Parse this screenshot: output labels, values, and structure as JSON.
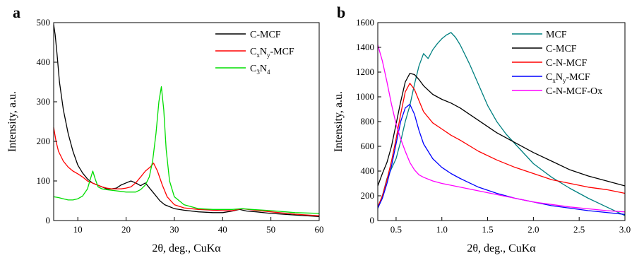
{
  "chart_data": [
    {
      "type": "line",
      "panel_label": "a",
      "xlabel": "2θ, deg., CuKα",
      "ylabel": "Intensity, a.u.",
      "xlim": [
        5,
        60
      ],
      "ylim": [
        0,
        500
      ],
      "xticks": [
        10,
        20,
        30,
        40,
        50,
        60
      ],
      "yticks": [
        0,
        100,
        200,
        300,
        400,
        500
      ],
      "grid": false,
      "legend_placement": "top-right",
      "series": [
        {
          "name": "C-MCF",
          "legend": {
            "base": "C-MCF",
            "parts": []
          },
          "color": "#000000",
          "x": [
            5,
            5.3,
            5.7,
            6.2,
            7,
            8,
            9,
            10,
            11,
            12,
            13,
            14,
            15,
            16,
            17,
            18,
            19,
            20,
            21,
            22,
            23,
            24,
            25,
            26,
            27,
            28,
            29,
            30,
            32,
            35,
            38,
            40,
            42,
            43.5,
            45,
            47,
            50,
            55,
            60
          ],
          "y": [
            495,
            470,
            420,
            350,
            280,
            220,
            175,
            140,
            120,
            105,
            95,
            90,
            85,
            80,
            80,
            82,
            90,
            95,
            100,
            95,
            88,
            95,
            80,
            65,
            50,
            40,
            35,
            30,
            26,
            22,
            20,
            20,
            24,
            28,
            24,
            22,
            18,
            14,
            10
          ]
        },
        {
          "name": "CxNy-MCF",
          "legend": {
            "base": "C",
            "parts": [
              {
                "sub": "x"
              },
              {
                "text": "N"
              },
              {
                "sub": "y"
              },
              {
                "text": "-MCF"
              }
            ]
          },
          "color": "#ff0000",
          "x": [
            5,
            5.5,
            6,
            7,
            8,
            9,
            10,
            11,
            12,
            13,
            14,
            15,
            16,
            17,
            18,
            19,
            20,
            21,
            22,
            23,
            24,
            25,
            25.7,
            26.5,
            27.5,
            28.5,
            30,
            32,
            35,
            38,
            40,
            42,
            44,
            46,
            50,
            55,
            60
          ],
          "y": [
            235,
            200,
            175,
            150,
            135,
            125,
            118,
            110,
            100,
            95,
            90,
            85,
            82,
            80,
            80,
            80,
            82,
            85,
            95,
            110,
            125,
            135,
            145,
            125,
            90,
            60,
            40,
            32,
            28,
            26,
            25,
            25,
            30,
            27,
            22,
            16,
            12
          ]
        },
        {
          "name": "C3N4",
          "legend": {
            "base": "C",
            "parts": [
              {
                "sub": "3"
              },
              {
                "text": "N"
              },
              {
                "sub": "4"
              }
            ]
          },
          "color": "#00dd00",
          "x": [
            5,
            6,
            7,
            8,
            9,
            10,
            11,
            12,
            12.6,
            13.1,
            13.6,
            14.2,
            15,
            16,
            18,
            20,
            22,
            23,
            24,
            24.8,
            25.5,
            26.2,
            26.8,
            27.3,
            27.8,
            28.3,
            29,
            30,
            32,
            35,
            38,
            40,
            42,
            44,
            46,
            50,
            55,
            60
          ],
          "y": [
            60,
            58,
            55,
            52,
            52,
            55,
            62,
            80,
            105,
            125,
            105,
            85,
            80,
            78,
            75,
            72,
            72,
            78,
            90,
            110,
            150,
            220,
            300,
            338,
            280,
            180,
            100,
            60,
            40,
            30,
            28,
            28,
            28,
            30,
            28,
            25,
            20,
            18
          ]
        }
      ]
    },
    {
      "type": "line",
      "panel_label": "b",
      "xlabel": "2θ, deg., CuKα",
      "ylabel": "Intensity, a.u.",
      "xlim": [
        0.3,
        3.0
      ],
      "ylim": [
        0,
        1600
      ],
      "xticks": [
        0.5,
        1.0,
        1.5,
        2.0,
        2.5,
        3.0
      ],
      "xtick_labels": [
        "0.5",
        "1.0",
        "1.5",
        "2.0",
        "2.5",
        "3.0"
      ],
      "yticks": [
        0,
        200,
        400,
        600,
        800,
        1000,
        1200,
        1400,
        1600
      ],
      "grid": false,
      "legend_placement": "top-right",
      "series": [
        {
          "name": "MCF",
          "legend": {
            "base": "MCF",
            "parts": []
          },
          "color": "#008080",
          "x": [
            0.3,
            0.35,
            0.4,
            0.45,
            0.5,
            0.55,
            0.6,
            0.65,
            0.7,
            0.75,
            0.8,
            0.85,
            0.9,
            0.95,
            1.0,
            1.05,
            1.1,
            1.15,
            1.2,
            1.3,
            1.4,
            1.5,
            1.6,
            1.7,
            1.8,
            1.9,
            2.0,
            2.2,
            2.4,
            2.6,
            2.8,
            3.0
          ],
          "y": [
            100,
            200,
            340,
            420,
            500,
            640,
            800,
            930,
            1100,
            1250,
            1350,
            1310,
            1380,
            1430,
            1470,
            1500,
            1520,
            1480,
            1420,
            1270,
            1100,
            930,
            800,
            700,
            620,
            540,
            460,
            350,
            260,
            180,
            110,
            40
          ]
        },
        {
          "name": "C-MCF",
          "legend": {
            "base": "C-MCF",
            "parts": []
          },
          "color": "#000000",
          "x": [
            0.3,
            0.35,
            0.4,
            0.45,
            0.5,
            0.55,
            0.6,
            0.65,
            0.7,
            0.75,
            0.8,
            0.9,
            1.0,
            1.1,
            1.2,
            1.4,
            1.6,
            1.8,
            2.0,
            2.2,
            2.4,
            2.6,
            2.8,
            3.0
          ],
          "y": [
            280,
            380,
            470,
            600,
            780,
            960,
            1120,
            1190,
            1180,
            1140,
            1090,
            1020,
            980,
            950,
            910,
            810,
            710,
            630,
            550,
            480,
            410,
            360,
            320,
            280
          ]
        },
        {
          "name": "C-N-MCF",
          "legend": {
            "base": "C-N-MCF",
            "parts": []
          },
          "color": "#ff0000",
          "x": [
            0.3,
            0.35,
            0.4,
            0.45,
            0.5,
            0.55,
            0.6,
            0.65,
            0.7,
            0.75,
            0.8,
            0.9,
            1.0,
            1.1,
            1.2,
            1.4,
            1.6,
            1.8,
            2.0,
            2.2,
            2.4,
            2.6,
            2.8,
            3.0
          ],
          "y": [
            110,
            200,
            330,
            480,
            660,
            860,
            1040,
            1110,
            1060,
            970,
            880,
            790,
            740,
            690,
            650,
            560,
            490,
            430,
            380,
            330,
            300,
            270,
            250,
            220
          ]
        },
        {
          "name": "CxNy-MCF",
          "legend": {
            "base": "C",
            "parts": [
              {
                "sub": "x"
              },
              {
                "text": "N"
              },
              {
                "sub": "y"
              },
              {
                "text": "-MCF"
              }
            ]
          },
          "color": "#0000ff",
          "x": [
            0.3,
            0.35,
            0.4,
            0.45,
            0.5,
            0.55,
            0.6,
            0.65,
            0.7,
            0.75,
            0.8,
            0.9,
            1.0,
            1.1,
            1.2,
            1.4,
            1.6,
            1.8,
            2.0,
            2.2,
            2.4,
            2.6,
            2.8,
            3.0
          ],
          "y": [
            100,
            180,
            300,
            440,
            620,
            800,
            910,
            940,
            860,
            730,
            620,
            500,
            430,
            380,
            340,
            270,
            220,
            180,
            150,
            120,
            100,
            80,
            65,
            50
          ]
        },
        {
          "name": "C-N-MCF-Ox",
          "legend": {
            "base": "C-N-MCF-Ox",
            "parts": []
          },
          "color": "#ff00ff",
          "x": [
            0.3,
            0.35,
            0.4,
            0.45,
            0.5,
            0.55,
            0.6,
            0.65,
            0.7,
            0.75,
            0.8,
            0.9,
            1.0,
            1.2,
            1.4,
            1.6,
            1.8,
            2.0,
            2.2,
            2.4,
            2.6,
            2.8,
            3.0
          ],
          "y": [
            1420,
            1290,
            1120,
            940,
            780,
            660,
            560,
            470,
            410,
            370,
            350,
            320,
            300,
            270,
            240,
            210,
            180,
            150,
            130,
            110,
            95,
            80,
            70
          ]
        }
      ]
    }
  ]
}
